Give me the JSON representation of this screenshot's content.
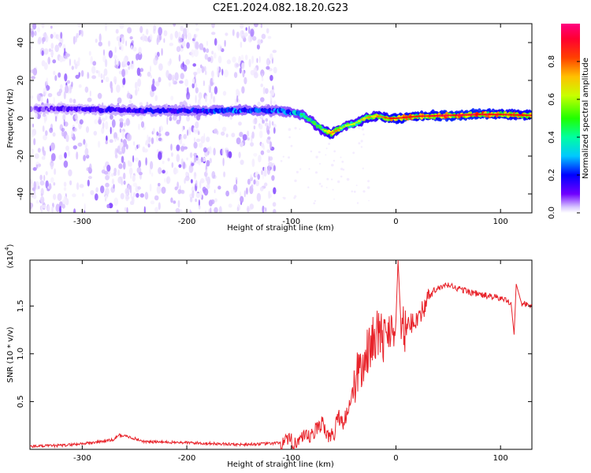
{
  "title": "C2E1.2024.082.18.20.G23",
  "chart_data": [
    {
      "type": "heatmap",
      "xlabel": "Height of straight line (km)",
      "ylabel": "Frequency (Hz)",
      "xlim": [
        -350,
        130
      ],
      "ylim": [
        -50,
        50
      ],
      "x_ticks": [
        -300,
        -200,
        -100,
        0,
        100
      ],
      "y_ticks": [
        -40,
        -20,
        0,
        20,
        40
      ],
      "colorbar": {
        "label": "Normalized spectral amplitude",
        "range": [
          0,
          1
        ],
        "ticks": [
          "0.0",
          "0.2",
          "0.4",
          "0.6",
          "0.8"
        ],
        "tick_values": [
          0.0,
          0.2,
          0.4,
          0.6,
          0.8
        ],
        "colors": [
          "#ffffff",
          "#c8a8ff",
          "#5000ff",
          "#0000ff",
          "#00d0ff",
          "#00ff80",
          "#40ff00",
          "#ffff00",
          "#ff8000",
          "#ff0000",
          "#ff0066"
        ]
      },
      "ridge_x": [
        -345,
        -300,
        -250,
        -200,
        -150,
        -110,
        -100,
        -90,
        -80,
        -70,
        -62,
        -55,
        -48,
        -40,
        -30,
        -22,
        -15,
        -8,
        0,
        20,
        50,
        80,
        100,
        130
      ],
      "ridge_y": [
        5,
        5,
        4,
        4,
        4,
        4,
        3,
        2,
        -2,
        -6,
        -8,
        -6,
        -4,
        -3,
        0,
        1,
        1,
        0,
        0,
        1,
        1.5,
        2,
        2,
        1.5
      ],
      "ridge_amplitude": [
        0.2,
        0.25,
        0.3,
        0.35,
        0.4,
        0.4,
        0.45,
        0.5,
        0.55,
        0.6,
        0.75,
        0.7,
        0.6,
        0.6,
        0.7,
        0.7,
        0.75,
        0.8,
        0.85,
        0.85,
        0.9,
        0.9,
        0.85,
        0.85
      ],
      "noise_region_x": [
        -350,
        -115
      ]
    },
    {
      "type": "line",
      "xlabel": "Height of straight line (km)",
      "ylabel": "SNR (10 * v/v)",
      "scale_note": "(x10",
      "scale_exp": "4",
      "scale_close": ")",
      "xlim": [
        -350,
        130
      ],
      "ylim": [
        0,
        19800
      ],
      "x_ticks": [
        -300,
        -200,
        -100,
        0,
        100
      ],
      "y_ticks": [
        5000,
        10000,
        15000
      ],
      "y_tick_labels": [
        "0.5",
        "1.0",
        "1.5"
      ],
      "line_color": "#e8232a",
      "series": [
        {
          "x": [
            -350,
            -320,
            -290,
            -270,
            -265,
            -255,
            -240,
            -200,
            -150,
            -120,
            -100,
            -90,
            -80,
            -75,
            -70,
            -65,
            -60,
            -55,
            -50,
            -45,
            -40,
            -35,
            -30,
            -25,
            -20,
            -15,
            -10,
            -5,
            0,
            2,
            5,
            10,
            15,
            20,
            25,
            30,
            35,
            40,
            45,
            50,
            60,
            70,
            80,
            90,
            100,
            110,
            113,
            115,
            120,
            130
          ],
          "y": [
            300,
            400,
            700,
            1000,
            1500,
            1300,
            800,
            700,
            500,
            600,
            800,
            1000,
            1400,
            2200,
            3000,
            1200,
            1400,
            3500,
            2800,
            4500,
            6500,
            8500,
            9000,
            11000,
            12000,
            12000,
            11500,
            13000,
            13500,
            19800,
            12500,
            12500,
            13200,
            13800,
            14500,
            15500,
            16500,
            16800,
            17000,
            17200,
            16800,
            16500,
            16200,
            16000,
            15800,
            15400,
            12000,
            17300,
            15300,
            15000
          ]
        }
      ]
    }
  ]
}
